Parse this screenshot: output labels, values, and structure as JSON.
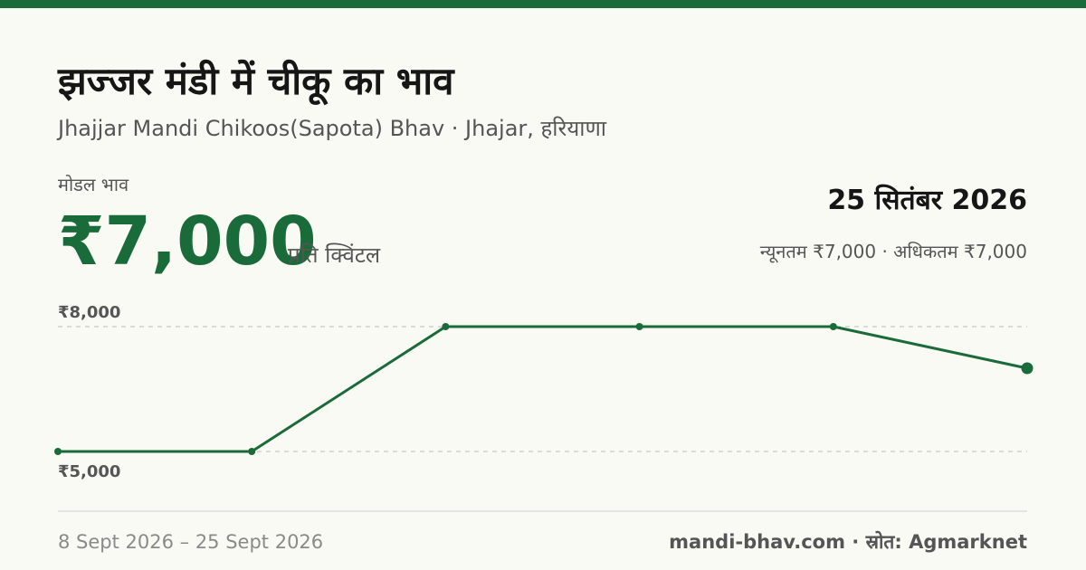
{
  "header": {
    "title": "झज्जर मंडी में चीकू का भाव",
    "subtitle": "Jhajjar Mandi Chikoos(Sapota) Bhav · Jhajar, हरियाणा"
  },
  "price": {
    "label": "मोडल भाव",
    "value": "₹7,000",
    "unit": "प्रति क्विंटल"
  },
  "summary": {
    "date": "25 सितंबर 2026",
    "range": "न्यूनतम ₹7,000 · अधिकतम ₹7,000"
  },
  "chart_data": {
    "type": "line",
    "categories": [
      null,
      null,
      null,
      null,
      null,
      null
    ],
    "series": [
      {
        "name": null,
        "color": "#1a6b3a",
        "values": [
          5000,
          5000,
          8000,
          8000,
          8000,
          7000
        ]
      }
    ],
    "ylim": [
      5000,
      8000
    ],
    "yticks": [
      {
        "value": 5000,
        "label": "₹5,000"
      },
      {
        "value": 8000,
        "label": "₹8,000"
      }
    ],
    "grid": true
  },
  "footer": {
    "period": "8 Sept 2026 – 25 Sept 2026",
    "source": "mandi-bhav.com · स्रोत: Agmarknet"
  }
}
